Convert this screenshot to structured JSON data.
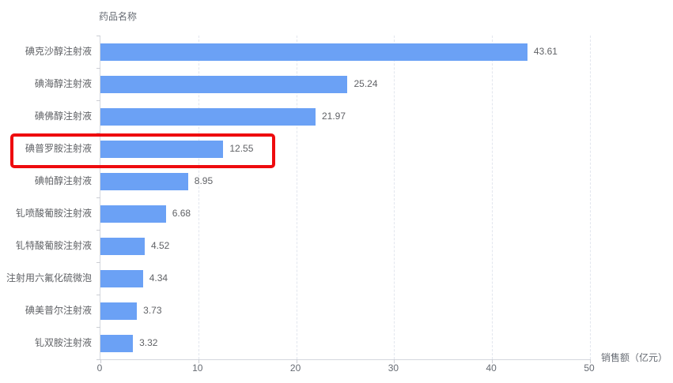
{
  "chart": {
    "y_axis_title": "药品名称",
    "x_axis_title": "销售额（亿元）"
  },
  "chart_data": {
    "type": "bar",
    "orientation": "horizontal",
    "title": "",
    "xlabel": "销售额（亿元）",
    "ylabel": "药品名称",
    "categories": [
      "碘克沙醇注射液",
      "碘海醇注射液",
      "碘佛醇注射液",
      "碘普罗胺注射液",
      "碘帕醇注射液",
      "钆喷酸葡胺注射液",
      "钆特酸葡胺注射液",
      "注射用六氟化硫微泡",
      "碘美普尔注射液",
      "钆双胺注射液"
    ],
    "values": [
      43.61,
      25.24,
      21.97,
      12.55,
      8.95,
      6.68,
      4.52,
      4.34,
      3.73,
      3.32
    ],
    "value_labels": [
      "43.61",
      "25.24",
      "21.97",
      "12.55",
      "8.95",
      "6.68",
      "4.52",
      "4.34",
      "3.73",
      "3.32"
    ],
    "xlim": [
      0,
      50
    ],
    "x_ticks": [
      0,
      10,
      20,
      30,
      40,
      50
    ],
    "grid": true,
    "legend": "none",
    "bar_color": "#6ba1f5",
    "highlight": {
      "category": "碘普罗胺注射液",
      "box_color": "#ee0b0e"
    }
  }
}
